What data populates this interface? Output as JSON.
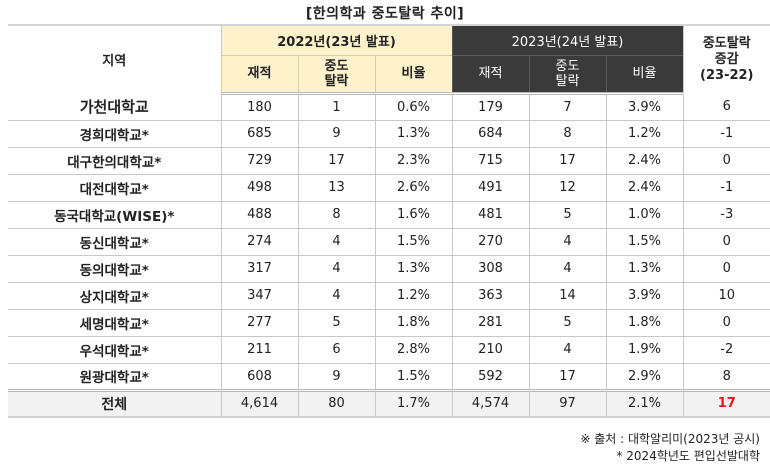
{
  "title": "[한의학과 중도탈락 추이]",
  "header": {
    "region": "지역",
    "year2022": "2022년(23년 발표)",
    "year2023": "2023년(24년 발표)",
    "change_line1": "중도탈락",
    "change_line2": "증감",
    "change_line3": "(23-22)",
    "enrolled": "재적",
    "dropout_line1": "중도",
    "dropout_line2": "탈락",
    "ratio": "비율"
  },
  "rows": [
    {
      "name": "가천대학교",
      "e22": "180",
      "d22": "1",
      "r22": "0.6%",
      "e23": "179",
      "d23": "7",
      "r23": "3.9%",
      "chg": "6"
    },
    {
      "name": "경희대학교*",
      "e22": "685",
      "d22": "9",
      "r22": "1.3%",
      "e23": "684",
      "d23": "8",
      "r23": "1.2%",
      "chg": "-1"
    },
    {
      "name": "대구한의대학교*",
      "e22": "729",
      "d22": "17",
      "r22": "2.3%",
      "e23": "715",
      "d23": "17",
      "r23": "2.4%",
      "chg": "0"
    },
    {
      "name": "대전대학교*",
      "e22": "498",
      "d22": "13",
      "r22": "2.6%",
      "e23": "491",
      "d23": "12",
      "r23": "2.4%",
      "chg": "-1"
    },
    {
      "name": "동국대학교(WISE)*",
      "e22": "488",
      "d22": "8",
      "r22": "1.6%",
      "e23": "481",
      "d23": "5",
      "r23": "1.0%",
      "chg": "-3"
    },
    {
      "name": "동신대학교*",
      "e22": "274",
      "d22": "4",
      "r22": "1.5%",
      "e23": "270",
      "d23": "4",
      "r23": "1.5%",
      "chg": "0"
    },
    {
      "name": "동의대학교*",
      "e22": "317",
      "d22": "4",
      "r22": "1.3%",
      "e23": "308",
      "d23": "4",
      "r23": "1.3%",
      "chg": "0"
    },
    {
      "name": "상지대학교*",
      "e22": "347",
      "d22": "4",
      "r22": "1.2%",
      "e23": "363",
      "d23": "14",
      "r23": "3.9%",
      "chg": "10"
    },
    {
      "name": "세명대학교*",
      "e22": "277",
      "d22": "5",
      "r22": "1.8%",
      "e23": "281",
      "d23": "5",
      "r23": "1.8%",
      "chg": "0"
    },
    {
      "name": "우석대학교*",
      "e22": "211",
      "d22": "6",
      "r22": "2.8%",
      "e23": "210",
      "d23": "4",
      "r23": "1.9%",
      "chg": "-2"
    },
    {
      "name": "원광대학교*",
      "e22": "608",
      "d22": "9",
      "r22": "1.5%",
      "e23": "592",
      "d23": "17",
      "r23": "2.9%",
      "chg": "8"
    }
  ],
  "total": {
    "name": "전체",
    "e22": "4,614",
    "d22": "80",
    "r22": "1.7%",
    "e23": "4,574",
    "d23": "97",
    "r23": "2.1%",
    "chg": "17"
  },
  "notes": {
    "source": "※ 출처 : 대학알리미(2023년 공시)",
    "asterisk": "* 2024학년도 편입선발대학"
  },
  "colors": {
    "year2022_header_bg": "#fdf2cc",
    "year2023_header_bg": "#3a3a3a",
    "total_row_bg": "#f2f2f2",
    "highlight_red": "#e8141b"
  }
}
